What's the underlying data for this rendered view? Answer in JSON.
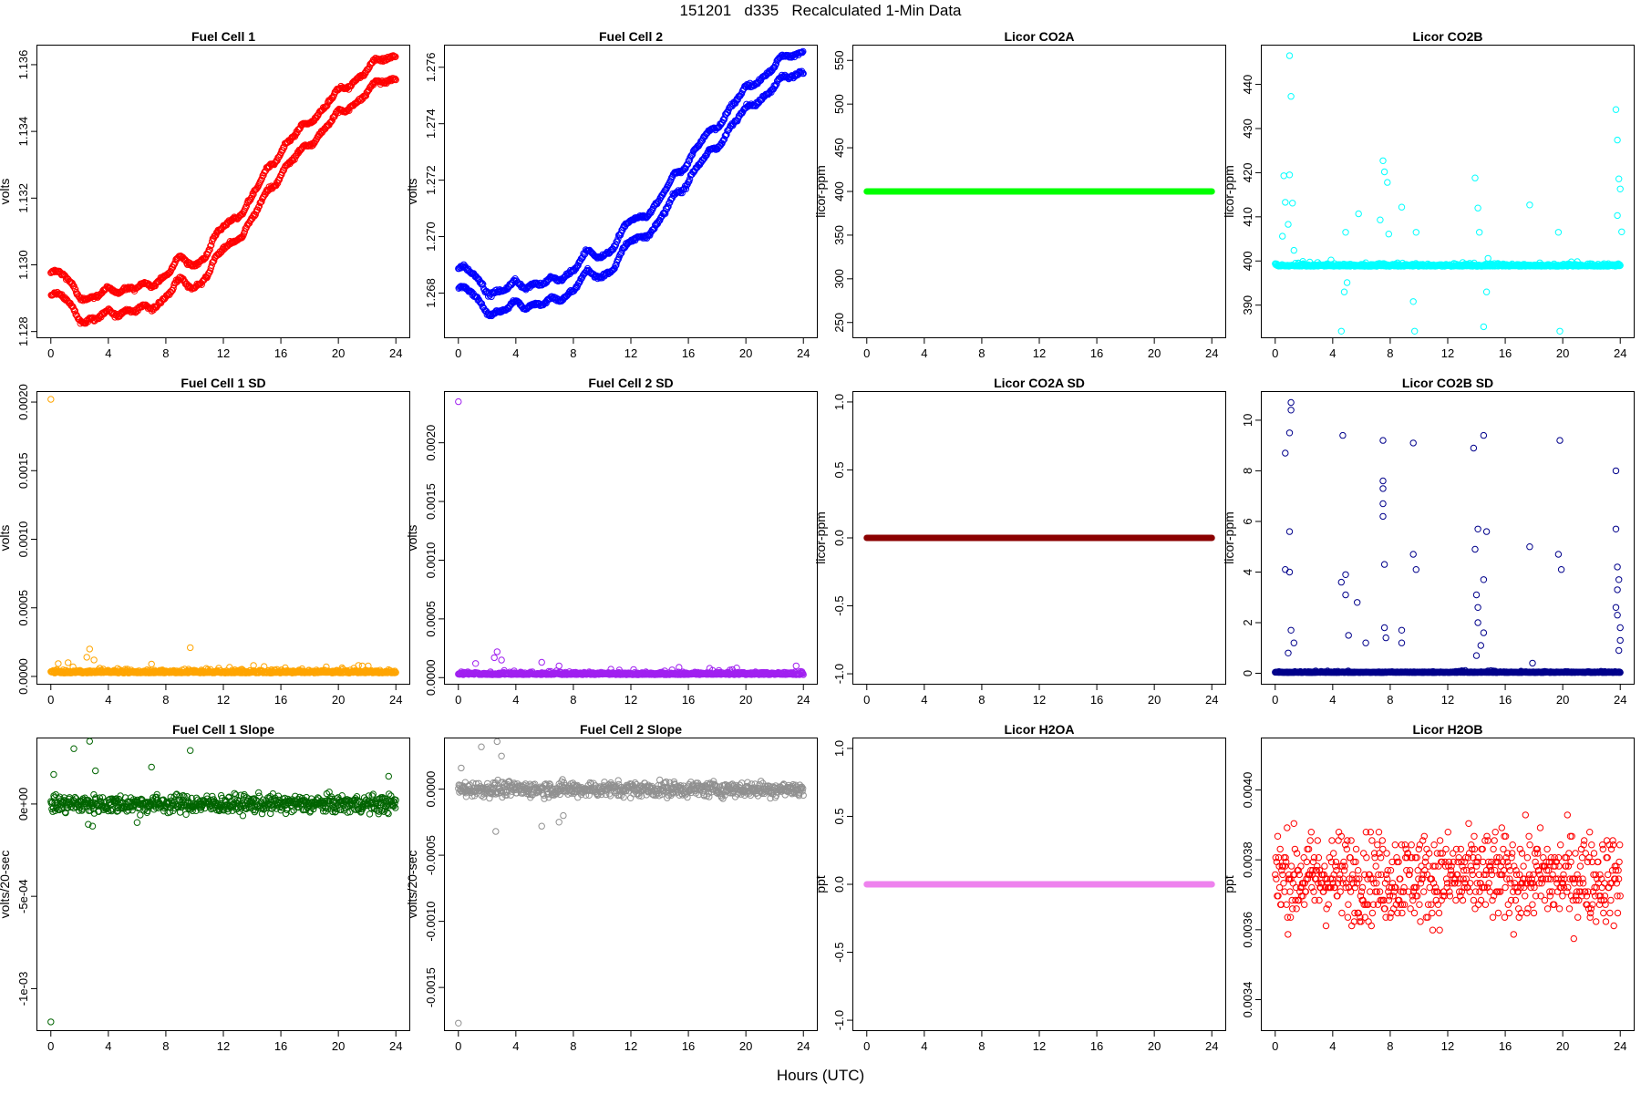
{
  "figure": {
    "title": "151201   d335   Recalculated 1-Min Data",
    "xlabel": "Hours (UTC)"
  },
  "chart_data": [
    {
      "type": "scatter",
      "title": "Fuel Cell 1",
      "ylabel": "volts",
      "color": "#ff0000",
      "xlim": [
        -1,
        25
      ],
      "ylim": [
        1.1278,
        1.1366
      ],
      "xticks": [
        "0",
        "4",
        "8",
        "12",
        "16",
        "20",
        "24"
      ],
      "yticks": [
        "1.128",
        "1.130",
        "1.132",
        "1.134",
        "1.136"
      ],
      "pattern": "band",
      "band": {
        "x": [
          0,
          1,
          2,
          3,
          4,
          5,
          6,
          7,
          8,
          9,
          10,
          11,
          12,
          13,
          14,
          15,
          16,
          17,
          18,
          19,
          20,
          21,
          22,
          23,
          24
        ],
        "y": [
          1.1294,
          1.1293,
          1.1288,
          1.1286,
          1.1289,
          1.129,
          1.1289,
          1.1291,
          1.1294,
          1.1298,
          1.1297,
          1.1301,
          1.1308,
          1.1312,
          1.1316,
          1.1325,
          1.1331,
          1.1335,
          1.134,
          1.1344,
          1.1348,
          1.1352,
          1.1355,
          1.1358,
          1.136
        ],
        "spread": 0.00042
      }
    },
    {
      "type": "scatter",
      "title": "Fuel Cell 2",
      "ylabel": "volts",
      "color": "#0000ff",
      "xlim": [
        -1,
        25
      ],
      "ylim": [
        1.2664,
        1.2768
      ],
      "xticks": [
        "0",
        "4",
        "8",
        "12",
        "16",
        "20",
        "24"
      ],
      "yticks": [
        "1.268",
        "1.270",
        "1.272",
        "1.274",
        "1.276"
      ],
      "pattern": "band",
      "band": {
        "x": [
          0,
          1,
          2,
          3,
          4,
          5,
          6,
          7,
          8,
          9,
          10,
          11,
          12,
          13,
          14,
          15,
          16,
          17,
          18,
          19,
          20,
          21,
          22,
          23,
          24
        ],
        "y": [
          1.2685,
          1.2683,
          1.2678,
          1.2676,
          1.268,
          1.268,
          1.2679,
          1.2682,
          1.2685,
          1.269,
          1.269,
          1.2694,
          1.2702,
          1.2705,
          1.2708,
          1.2718,
          1.2724,
          1.273,
          1.2736,
          1.2743,
          1.2748,
          1.2753,
          1.2757,
          1.276,
          1.2763
        ],
        "spread": 0.00045
      }
    },
    {
      "type": "scatter",
      "title": "Licor CO2A",
      "ylabel": "licor-ppm",
      "color": "#00ff00",
      "xlim": [
        -1,
        25
      ],
      "ylim": [
        232,
        568
      ],
      "xticks": [
        "0",
        "4",
        "8",
        "12",
        "16",
        "20",
        "24"
      ],
      "yticks": [
        "250",
        "300",
        "350",
        "400",
        "450",
        "500",
        "550"
      ],
      "pattern": "constant",
      "constant": 400
    },
    {
      "type": "scatter",
      "title": "Licor CO2B",
      "ylabel": "licor-ppm",
      "color": "#00ffff",
      "xlim": [
        -1,
        25
      ],
      "ylim": [
        382.5,
        449
      ],
      "xticks": [
        "0",
        "4",
        "8",
        "12",
        "16",
        "20",
        "24"
      ],
      "yticks": [
        "390",
        "400",
        "410",
        "420",
        "430",
        "440"
      ],
      "pattern": "baseline",
      "baseline": 398.8,
      "noise": 0.5,
      "outliers": [
        [
          1.0,
          446.5
        ],
        [
          1.1,
          437.3
        ],
        [
          0.6,
          419.3
        ],
        [
          1.0,
          419.5
        ],
        [
          0.7,
          413.3
        ],
        [
          1.2,
          413.1
        ],
        [
          0.5,
          405.6
        ],
        [
          0.9,
          408.3
        ],
        [
          1.3,
          402.4
        ],
        [
          4.6,
          384.1
        ],
        [
          4.8,
          393.0
        ],
        [
          4.9,
          406.5
        ],
        [
          5.0,
          395.1
        ],
        [
          5.8,
          410.7
        ],
        [
          6.3,
          399.6
        ],
        [
          7.3,
          409.3
        ],
        [
          7.5,
          422.7
        ],
        [
          7.6,
          420.2
        ],
        [
          7.8,
          417.8
        ],
        [
          7.9,
          406.1
        ],
        [
          8.8,
          412.2
        ],
        [
          9.6,
          390.8
        ],
        [
          9.7,
          384.1
        ],
        [
          9.8,
          406.5
        ],
        [
          13.9,
          418.8
        ],
        [
          14.1,
          412.0
        ],
        [
          14.2,
          406.5
        ],
        [
          14.5,
          385.1
        ],
        [
          14.7,
          393.0
        ],
        [
          14.8,
          400.6
        ],
        [
          17.7,
          412.7
        ],
        [
          19.7,
          406.5
        ],
        [
          19.8,
          384.1
        ],
        [
          23.7,
          434.3
        ],
        [
          23.8,
          427.4
        ],
        [
          23.9,
          418.6
        ],
        [
          24.0,
          416.3
        ],
        [
          23.8,
          410.3
        ],
        [
          24.1,
          406.6
        ]
      ]
    },
    {
      "type": "scatter",
      "title": "Fuel Cell 1 SD",
      "ylabel": "volts",
      "color": "#ffa500",
      "xlim": [
        -1,
        25
      ],
      "ylim": [
        -6e-05,
        0.00208
      ],
      "xticks": [
        "0",
        "4",
        "8",
        "12",
        "16",
        "20",
        "24"
      ],
      "yticks": [
        "0.0000",
        "0.0005",
        "0.0010",
        "0.0015",
        "0.0020"
      ],
      "pattern": "baseline",
      "baseline": 2.5e-05,
      "noise": 2e-05,
      "outliers": [
        [
          0.0,
          0.00202
        ],
        [
          2.7,
          0.0002
        ],
        [
          2.5,
          0.00014
        ],
        [
          3.0,
          0.00012
        ],
        [
          1.2,
          0.0001
        ],
        [
          9.7,
          0.00021
        ],
        [
          7.0,
          9e-05
        ],
        [
          14.1,
          8e-05
        ],
        [
          21.4,
          8e-05
        ]
      ]
    },
    {
      "type": "scatter",
      "title": "Fuel Cell 2 SD",
      "ylabel": "volts",
      "color": "#a020f0",
      "xlim": [
        -1,
        25
      ],
      "ylim": [
        -6e-05,
        0.00244
      ],
      "xticks": [
        "0",
        "4",
        "8",
        "12",
        "16",
        "20",
        "24"
      ],
      "yticks": [
        "0.0000",
        "0.0005",
        "0.0010",
        "0.0015",
        "0.0020"
      ],
      "pattern": "baseline",
      "baseline": 2.5e-05,
      "noise": 2e-05,
      "outliers": [
        [
          0.0,
          0.00235
        ],
        [
          2.7,
          0.00022
        ],
        [
          2.5,
          0.00017
        ],
        [
          3.0,
          0.00015
        ],
        [
          1.2,
          0.00012
        ],
        [
          5.8,
          0.00013
        ],
        [
          7.0,
          0.0001
        ],
        [
          23.5,
          0.0001
        ]
      ]
    },
    {
      "type": "scatter",
      "title": "Licor CO2A SD",
      "ylabel": "licor-ppm",
      "color": "#8b0000",
      "xlim": [
        -1,
        25
      ],
      "ylim": [
        -1.08,
        1.08
      ],
      "xticks": [
        "0",
        "4",
        "8",
        "12",
        "16",
        "20",
        "24"
      ],
      "yticks": [
        "-1.0",
        "-0.5",
        "0.0",
        "0.5",
        "1.0"
      ],
      "pattern": "constant",
      "constant": 0
    },
    {
      "type": "scatter",
      "title": "Licor CO2B SD",
      "ylabel": "licor-ppm",
      "color": "#00008b",
      "xlim": [
        -1,
        25
      ],
      "ylim": [
        -0.45,
        11.15
      ],
      "xticks": [
        "0",
        "4",
        "8",
        "12",
        "16",
        "20",
        "24"
      ],
      "yticks": [
        "0",
        "2",
        "4",
        "6",
        "8",
        "10"
      ],
      "pattern": "baseline",
      "baseline": 0.03,
      "noise": 0.03,
      "outliers": [
        [
          1.1,
          10.7
        ],
        [
          1.1,
          10.4
        ],
        [
          1.0,
          9.5
        ],
        [
          0.7,
          8.7
        ],
        [
          1.0,
          5.6
        ],
        [
          0.7,
          4.1
        ],
        [
          1.0,
          4.0
        ],
        [
          1.1,
          1.7
        ],
        [
          1.3,
          1.2
        ],
        [
          0.9,
          0.8
        ],
        [
          4.7,
          9.4
        ],
        [
          4.6,
          3.6
        ],
        [
          4.9,
          3.9
        ],
        [
          4.9,
          3.1
        ],
        [
          5.7,
          2.8
        ],
        [
          6.3,
          1.2
        ],
        [
          5.1,
          1.5
        ],
        [
          7.5,
          9.2
        ],
        [
          7.5,
          7.6
        ],
        [
          7.5,
          7.3
        ],
        [
          7.5,
          6.7
        ],
        [
          7.5,
          6.2
        ],
        [
          7.6,
          4.3
        ],
        [
          7.6,
          1.8
        ],
        [
          7.7,
          1.4
        ],
        [
          8.8,
          1.7
        ],
        [
          8.8,
          1.2
        ],
        [
          9.6,
          9.1
        ],
        [
          9.6,
          4.7
        ],
        [
          9.8,
          4.1
        ],
        [
          13.8,
          8.9
        ],
        [
          14.1,
          5.7
        ],
        [
          13.9,
          4.9
        ],
        [
          14.5,
          3.7
        ],
        [
          14.5,
          9.4
        ],
        [
          14.7,
          5.6
        ],
        [
          14.0,
          3.1
        ],
        [
          14.1,
          2.6
        ],
        [
          14.1,
          2.0
        ],
        [
          14.5,
          1.6
        ],
        [
          14.3,
          1.1
        ],
        [
          14.0,
          0.7
        ],
        [
          17.7,
          5.0
        ],
        [
          17.9,
          0.4
        ],
        [
          19.7,
          4.7
        ],
        [
          19.8,
          9.2
        ],
        [
          19.9,
          4.1
        ],
        [
          23.7,
          8.0
        ],
        [
          23.7,
          5.7
        ],
        [
          23.8,
          4.2
        ],
        [
          23.9,
          3.7
        ],
        [
          23.8,
          3.3
        ],
        [
          23.7,
          2.6
        ],
        [
          23.8,
          2.3
        ],
        [
          24.0,
          1.8
        ],
        [
          24.0,
          1.3
        ],
        [
          23.9,
          0.9
        ]
      ]
    },
    {
      "type": "scatter",
      "title": "Fuel Cell 1 Slope",
      "ylabel": "volts/20-sec",
      "color": "#006400",
      "xlim": [
        -1,
        25
      ],
      "ylim": [
        -0.00123,
        0.00036
      ],
      "xticks": [
        "0",
        "4",
        "8",
        "12",
        "16",
        "20",
        "24"
      ],
      "yticks": [
        "-1e-03",
        "-5e-04",
        "0e+00"
      ],
      "pattern": "noise",
      "baseline": 0,
      "noise": 5e-05,
      "outliers": [
        [
          0.0,
          -0.00118
        ],
        [
          0.2,
          0.00016
        ],
        [
          2.7,
          0.00034
        ],
        [
          1.6,
          0.0003
        ],
        [
          9.7,
          0.00029
        ],
        [
          2.9,
          -0.00012
        ],
        [
          2.6,
          -0.00011
        ],
        [
          6.0,
          -0.0001
        ],
        [
          7.0,
          0.0002
        ],
        [
          3.1,
          0.00018
        ],
        [
          23.5,
          0.00015
        ]
      ]
    },
    {
      "type": "scatter",
      "title": "Fuel Cell 2 Slope",
      "ylabel": "volts/20-sec",
      "color": "#909090",
      "xlim": [
        -1,
        25
      ],
      "ylim": [
        -0.00183,
        0.00039
      ],
      "xticks": [
        "0",
        "4",
        "8",
        "12",
        "16",
        "20",
        "24"
      ],
      "yticks": [
        "-0.0015",
        "-0.0010",
        "-0.0005",
        "0.0000"
      ],
      "pattern": "noise",
      "baseline": 0,
      "noise": 6e-05,
      "outliers": [
        [
          0.0,
          -0.00177
        ],
        [
          2.7,
          0.00036
        ],
        [
          1.6,
          0.00032
        ],
        [
          0.2,
          0.00016
        ],
        [
          2.6,
          -0.00032
        ],
        [
          5.8,
          -0.00028
        ],
        [
          7.0,
          -0.00025
        ],
        [
          3.0,
          0.00025
        ],
        [
          7.3,
          -0.0002
        ]
      ]
    },
    {
      "type": "scatter",
      "title": "Licor H2OA",
      "ylabel": "ppt",
      "color": "#ee82ee",
      "xlim": [
        -1,
        25
      ],
      "ylim": [
        -1.08,
        1.08
      ],
      "xticks": [
        "0",
        "4",
        "8",
        "12",
        "16",
        "20",
        "24"
      ],
      "yticks": [
        "-1.0",
        "-0.5",
        "0.0",
        "0.5",
        "1.0"
      ],
      "pattern": "constant",
      "constant": 0
    },
    {
      "type": "scatter",
      "title": "Licor H2OB",
      "ylabel": "ppt",
      "color": "#ff0000",
      "xlim": [
        -1,
        25
      ],
      "ylim": [
        0.00331,
        0.00415
      ],
      "xticks": [
        "0",
        "4",
        "8",
        "12",
        "16",
        "20",
        "24"
      ],
      "yticks": [
        "0.0034",
        "0.0036",
        "0.0038",
        "0.0040"
      ],
      "pattern": "quantized",
      "baseline": 0.00375,
      "noise": 0.00013,
      "step": 1.22e-05
    }
  ]
}
